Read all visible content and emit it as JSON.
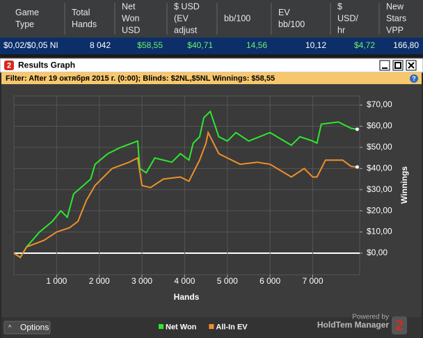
{
  "table": {
    "headers": [
      [
        "Game",
        "Type"
      ],
      [
        "Total",
        "Hands"
      ],
      [
        "Net",
        "Won",
        "USD"
      ],
      [
        "$ USD",
        "(EV",
        "adjust"
      ],
      [
        "bb/100"
      ],
      [
        "EV",
        "bb/100"
      ],
      [
        "$",
        "USD/",
        "hr"
      ],
      [
        "New",
        "Stars",
        "VPP"
      ]
    ],
    "rows": [
      [
        "$0,02/$0,05 NI",
        "8 042",
        "$58,55",
        "$40,71",
        "14,56",
        "10,12",
        "$4,72",
        "166,80"
      ]
    ]
  },
  "window": {
    "icon": "2",
    "title": "Results Graph",
    "filter": "Filter: After 19 октября 2015 г. (0:00); Blinds: $2NL,$5NL Winnings: $58,55",
    "help": "?"
  },
  "chart_data": {
    "type": "line",
    "x_label": "Hands",
    "y_label": "Winnings",
    "xlim": [
      0,
      8100
    ],
    "ylim": [
      -10.2,
      74.3
    ],
    "grid": true,
    "xticks": [
      {
        "value": 1000,
        "label": "1 000"
      },
      {
        "value": 2000,
        "label": "2 000"
      },
      {
        "value": 3000,
        "label": "3 000"
      },
      {
        "value": 4000,
        "label": "4 000"
      },
      {
        "value": 5000,
        "label": "5 000"
      },
      {
        "value": 6000,
        "label": "6 000"
      },
      {
        "value": 7000,
        "label": "7 000"
      }
    ],
    "yticks": [
      {
        "value": 0,
        "label": "$0,00"
      },
      {
        "value": 10,
        "label": "$10,00"
      },
      {
        "value": 20,
        "label": "$20,00"
      },
      {
        "value": 30,
        "label": "$30,00"
      },
      {
        "value": 40,
        "label": "$40,00"
      },
      {
        "value": 50,
        "label": "$50,00"
      },
      {
        "value": 60,
        "label": "$60,00"
      },
      {
        "value": 70,
        "label": "$70,00"
      }
    ],
    "series": [
      {
        "name": "Net Won",
        "color": "#2ee82e",
        "x": [
          0,
          150,
          300,
          600,
          900,
          1100,
          1250,
          1400,
          1800,
          1900,
          2200,
          2500,
          2900,
          2950,
          3100,
          3300,
          3700,
          3900,
          4100,
          4200,
          4350,
          4450,
          4600,
          4800,
          5000,
          5200,
          5500,
          6000,
          6500,
          6700,
          7000,
          7100,
          7200,
          7600,
          7900,
          8042
        ],
        "values": [
          0,
          -2,
          3,
          10,
          15,
          20,
          17,
          28,
          35,
          42,
          47,
          50,
          53,
          40,
          38,
          45,
          43,
          47,
          44,
          52,
          55,
          64,
          67,
          55,
          53,
          57,
          53,
          57,
          51,
          55,
          53,
          52,
          61,
          62,
          59,
          58.55
        ]
      },
      {
        "name": "All-In EV",
        "color": "#f0902a",
        "x": [
          0,
          150,
          300,
          700,
          1000,
          1300,
          1500,
          1700,
          1900,
          2100,
          2300,
          2700,
          2900,
          3000,
          3200,
          3500,
          3900,
          4100,
          4200,
          4350,
          4500,
          4550,
          4800,
          5000,
          5300,
          5700,
          6000,
          6500,
          6800,
          7000,
          7100,
          7300,
          7700,
          7900,
          8042
        ],
        "values": [
          0,
          -2,
          3,
          6,
          10,
          12,
          15,
          25,
          32,
          36,
          40,
          43,
          45,
          32,
          31,
          35,
          36,
          34,
          38,
          44,
          52,
          57,
          47,
          45,
          42,
          43,
          42,
          36,
          40,
          36,
          36,
          44,
          44,
          41,
          40.71
        ]
      }
    ]
  },
  "footer": {
    "options": "Options",
    "powered": "Powered by",
    "brand": "HoldTem Manager",
    "logo": "2"
  }
}
